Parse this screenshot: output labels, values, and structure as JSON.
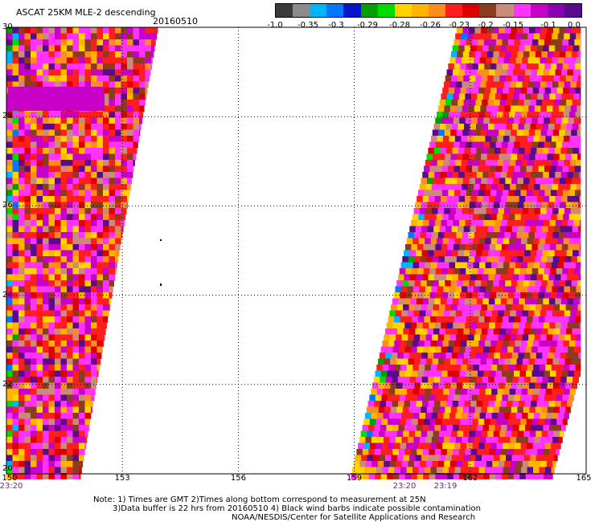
{
  "header": {
    "title": "ASCAT 25KM MLE-2 descending",
    "date": "20160510"
  },
  "colorbar": {
    "colors": [
      "#3a3a3a",
      "#8c8c8c",
      "#00b4ff",
      "#0078ff",
      "#0a14c8",
      "#00a000",
      "#00dc00",
      "#ffd200",
      "#ffb400",
      "#ff8c1e",
      "#ff1e1e",
      "#dc0000",
      "#8c3c1e",
      "#c88c78",
      "#ff32ff",
      "#c800c8",
      "#8c00b4",
      "#5a0a8c"
    ],
    "labels": [
      "-1.0",
      "-0.35",
      "-0.3",
      "-0.29",
      "-0.28",
      "-0.26",
      "-0.23",
      "-0.2",
      "-0.15",
      "-0.1",
      "0.0"
    ]
  },
  "map": {
    "lon_range": [
      150,
      165
    ],
    "lat_range": [
      20,
      30
    ],
    "x_ticks": [
      "150",
      "153",
      "156",
      "159",
      "162",
      "165"
    ],
    "y_ticks": [
      "30",
      "28",
      "26",
      "24",
      "22",
      "20"
    ],
    "pass_times": [
      "23:20",
      "23:20",
      "23:19"
    ]
  },
  "notes": {
    "line1": "Note: 1) Times are GMT 2)Times along bottom correspond to measurement at 25N",
    "line2": "3)Data buffer is 22 hrs from 20160510 4) Black wind barbs indicate possible contamination",
    "line3": "NOAA/NESDIS/Center for Satellite Applications and Research"
  }
}
